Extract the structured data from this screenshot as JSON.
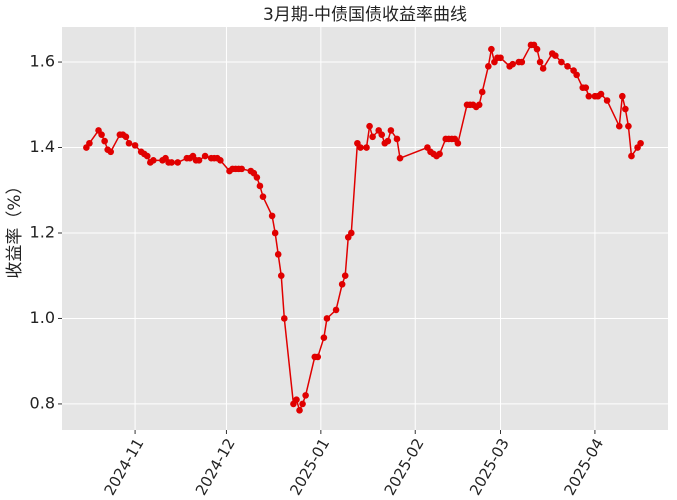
{
  "chart_data": {
    "type": "line",
    "title": "3月期-中债国债收益率曲线",
    "y_label": "收益率（%）",
    "x": [
      "2024-10-16",
      "2024-10-17",
      "2024-10-20",
      "2024-10-21",
      "2024-10-22",
      "2024-10-23",
      "2024-10-24",
      "2024-10-27",
      "2024-10-28",
      "2024-10-29",
      "2024-10-30",
      "2024-11-01",
      "2024-11-03",
      "2024-11-04",
      "2024-11-05",
      "2024-11-06",
      "2024-11-07",
      "2024-11-10",
      "2024-11-11",
      "2024-11-12",
      "2024-11-13",
      "2024-11-15",
      "2024-11-18",
      "2024-11-19",
      "2024-11-20",
      "2024-11-21",
      "2024-11-22",
      "2024-11-24",
      "2024-11-26",
      "2024-11-27",
      "2024-11-28",
      "2024-11-29",
      "2024-12-02",
      "2024-12-03",
      "2024-12-04",
      "2024-12-05",
      "2024-12-06",
      "2024-12-09",
      "2024-12-10",
      "2024-12-11",
      "2024-12-12",
      "2024-12-13",
      "2024-12-16",
      "2024-12-17",
      "2024-12-18",
      "2024-12-19",
      "2024-12-20",
      "2024-12-23",
      "2024-12-24",
      "2024-12-25",
      "2024-12-26",
      "2024-12-27",
      "2024-12-30",
      "2024-12-31",
      "2025-01-02",
      "2025-01-03",
      "2025-01-06",
      "2025-01-08",
      "2025-01-09",
      "2025-01-10",
      "2025-01-11",
      "2025-01-13",
      "2025-01-14",
      "2025-01-16",
      "2025-01-17",
      "2025-01-18",
      "2025-01-20",
      "2025-01-21",
      "2025-01-22",
      "2025-01-23",
      "2025-01-24",
      "2025-01-26",
      "2025-01-27",
      "2025-02-05",
      "2025-02-06",
      "2025-02-07",
      "2025-02-08",
      "2025-02-09",
      "2025-02-11",
      "2025-02-12",
      "2025-02-13",
      "2025-02-14",
      "2025-02-15",
      "2025-02-18",
      "2025-02-19",
      "2025-02-20",
      "2025-02-21",
      "2025-02-22",
      "2025-02-23",
      "2025-02-25",
      "2025-02-26",
      "2025-02-27",
      "2025-02-28",
      "2025-03-01",
      "2025-03-04",
      "2025-03-05",
      "2025-03-07",
      "2025-03-08",
      "2025-03-11",
      "2025-03-12",
      "2025-03-13",
      "2025-03-14",
      "2025-03-15",
      "2025-03-18",
      "2025-03-19",
      "2025-03-21",
      "2025-03-23",
      "2025-03-25",
      "2025-03-26",
      "2025-03-28",
      "2025-03-29",
      "2025-03-30",
      "2025-04-01",
      "2025-04-02",
      "2025-04-03",
      "2025-04-05",
      "2025-04-09",
      "2025-04-10",
      "2025-04-11",
      "2025-04-12",
      "2025-04-13",
      "2025-04-15",
      "2025-04-16"
    ],
    "series": [
      {
        "color": "#e00000",
        "values": [
          1.4,
          1.41,
          1.44,
          1.43,
          1.415,
          1.395,
          1.39,
          1.43,
          1.43,
          1.425,
          1.41,
          1.405,
          1.39,
          1.385,
          1.38,
          1.365,
          1.37,
          1.37,
          1.375,
          1.365,
          1.365,
          1.365,
          1.375,
          1.375,
          1.38,
          1.37,
          1.37,
          1.38,
          1.375,
          1.375,
          1.375,
          1.37,
          1.345,
          1.35,
          1.35,
          1.35,
          1.35,
          1.345,
          1.34,
          1.33,
          1.31,
          1.285,
          1.24,
          1.2,
          1.15,
          1.1,
          1.0,
          0.8,
          0.81,
          0.785,
          0.8,
          0.82,
          0.91,
          0.91,
          0.955,
          1.0,
          1.02,
          1.08,
          1.1,
          1.19,
          1.2,
          1.41,
          1.4,
          1.4,
          1.45,
          1.425,
          1.44,
          1.43,
          1.41,
          1.415,
          1.44,
          1.42,
          1.375,
          1.4,
          1.39,
          1.385,
          1.38,
          1.385,
          1.42,
          1.42,
          1.42,
          1.42,
          1.41,
          1.5,
          1.5,
          1.5,
          1.495,
          1.5,
          1.53,
          1.59,
          1.63,
          1.6,
          1.61,
          1.61,
          1.59,
          1.595,
          1.6,
          1.6,
          1.64,
          1.64,
          1.63,
          1.6,
          1.585,
          1.62,
          1.615,
          1.6,
          1.59,
          1.58,
          1.57,
          1.54,
          1.54,
          1.52,
          1.52,
          1.52,
          1.525,
          1.51,
          1.45,
          1.52,
          1.49,
          1.45,
          1.38,
          1.4,
          1.41
        ]
      }
    ],
    "xlim": [
      "2024-10-08",
      "2025-04-25"
    ],
    "xticks": [
      {
        "value": "2024-11-01",
        "label": "2024-11"
      },
      {
        "value": "2024-12-01",
        "label": "2024-12"
      },
      {
        "value": "2025-01-01",
        "label": "2025-01"
      },
      {
        "value": "2025-02-01",
        "label": "2025-02"
      },
      {
        "value": "2025-03-01",
        "label": "2025-03"
      },
      {
        "value": "2025-04-01",
        "label": "2025-04"
      }
    ],
    "ylim": [
      0.739,
      1.682
    ],
    "yticks": [
      0.8,
      {
        "value": 1,
        "label": "1.0"
      },
      1.2,
      1.4,
      1.6
    ],
    "grid": true
  }
}
